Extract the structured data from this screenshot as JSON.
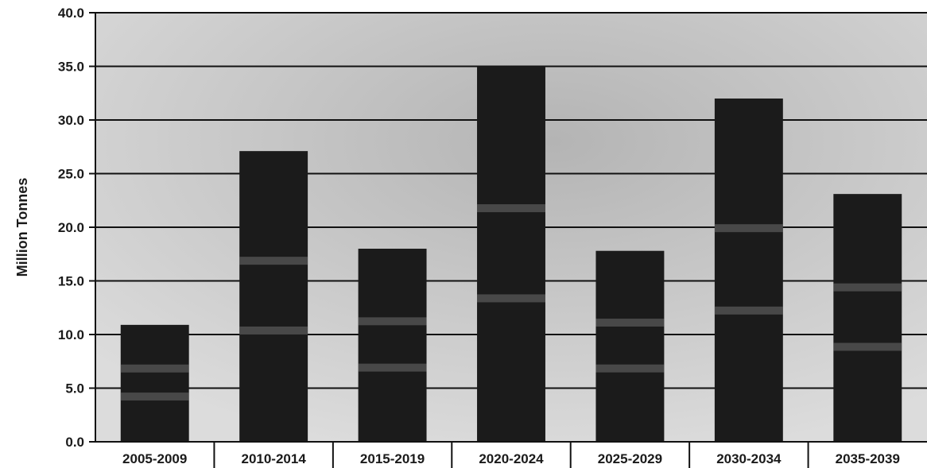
{
  "chart_data": {
    "type": "bar",
    "title": "",
    "xlabel": "",
    "ylabel": "Million Tonnes",
    "ylim": [
      0,
      40
    ],
    "yticks": [
      "0.0",
      "5.0",
      "10.0",
      "15.0",
      "20.0",
      "25.0",
      "30.0",
      "35.0",
      "40.0"
    ],
    "categories": [
      "2005-2009",
      "2010-2014",
      "2015-2019",
      "2020-2024",
      "2025-2029",
      "2030-2034",
      "2035-2039"
    ],
    "values": [
      10.9,
      27.1,
      18.0,
      35.0,
      17.8,
      32.0,
      23.1
    ],
    "grid": true,
    "legend": "none",
    "colors": {
      "bar": "#1b1b1b",
      "band": "#6e6e6e",
      "plot_bg": "#c9c9c9",
      "grid": "#111111"
    }
  }
}
